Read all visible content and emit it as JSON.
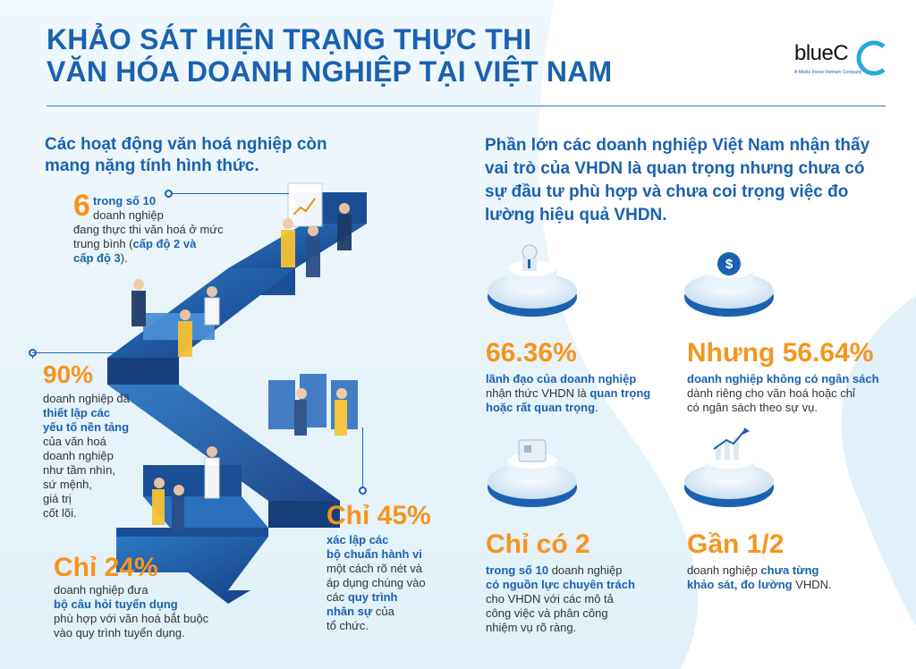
{
  "title": {
    "line1": "KHẢO SÁT HIỆN TRẠNG THỰC THI",
    "line2": "VĂN HÓA DOANH NGHIỆP TẠI VIỆT NAM"
  },
  "logo": {
    "text": "blueC",
    "subtitle": "A Media Invest Vietnam Company"
  },
  "left": {
    "heading": "Các hoạt động văn hoá nghiệp còn mang nặng tính hình thức.",
    "stat1": {
      "number": "6",
      "line1": "trong số 10",
      "line2": "doanh nghiệp",
      "line3": "đang thực thi văn hoá ở mức",
      "line4a": "trung bình (",
      "line4b": "cấp độ 2 và",
      "line5a": "cấp độ 3",
      "line5b": ")."
    },
    "stat2": {
      "number": "90%",
      "lines_before": [
        "doanh nghiệp đã"
      ],
      "highlight": [
        "thiết lập các",
        "yếu tố nền tảng"
      ],
      "lines_after": [
        "của văn hoá",
        "doanh nghiệp",
        "như tầm nhìn,",
        "sứ mệnh,",
        "giá trị",
        "cốt lõi."
      ]
    },
    "stat3": {
      "number": "Chỉ 24%",
      "line1": "doanh nghiệp đưa",
      "highlight": "bộ câu hỏi tuyển dụng",
      "line2": "phù hợp với văn hoá bắt buộc",
      "line3": "vào quy trình tuyển dụng."
    },
    "stat4": {
      "number": "Chỉ 45%",
      "highlight1": "xác lập các",
      "highlight2": "bộ chuẩn hành vi",
      "line1": "một cách rõ nét và",
      "line2": "áp dụng chúng vào",
      "line3a": "các ",
      "line3b": "quy trình",
      "line4a": "nhân sự",
      "line4b": " của",
      "line5": "tổ chức."
    }
  },
  "right": {
    "heading": "Phần lớn các doanh nghiệp Việt Nam nhận thấy vai trò của VHDN là quan trọng nhưng chưa có sự đầu tư phù hợp và chưa coi trọng việc đo lường hiệu quả VHDN.",
    "stat1": {
      "number": "66.36%",
      "highlight": "lãnh đạo của doanh nghiệp",
      "line1a": "nhận thức VHDN là ",
      "line1b": "quan trọng",
      "line2a": "hoặc rất quan trọng",
      "line2b": "."
    },
    "stat2": {
      "number": "Nhưng 56.64%",
      "highlight": "doanh nghiệp không có ngân sách",
      "line1": "dành riêng cho văn hoá hoặc chỉ",
      "line2": "có ngân sách theo sự vụ."
    },
    "stat3": {
      "number": "Chỉ có 2",
      "highlight1a": "trong số 10",
      "highlight1b": " doanh nghiệp",
      "highlight2": "có nguồn lực chuyên trách",
      "line1": "cho VHDN với các mô tả",
      "line2": "công việc và phân công",
      "line3": "nhiệm vụ rõ ràng."
    },
    "stat4": {
      "number": "Gần 1/2",
      "line1a": "doanh nghiệp ",
      "line1b": "chưa từng",
      "line2a": "khảo sát, đo lường",
      "line2b": " VHDN."
    },
    "icons": {
      "icon1": "leader-icon",
      "icon2": "dollar-icon",
      "icon3": "id-card-icon",
      "icon4": "growth-chart-icon"
    }
  },
  "colors": {
    "title_blue": "#1a62b0",
    "accent_orange": "#f7941d",
    "stair_blue": "#1e5fa8",
    "light_bg": "#e3f1fa"
  }
}
